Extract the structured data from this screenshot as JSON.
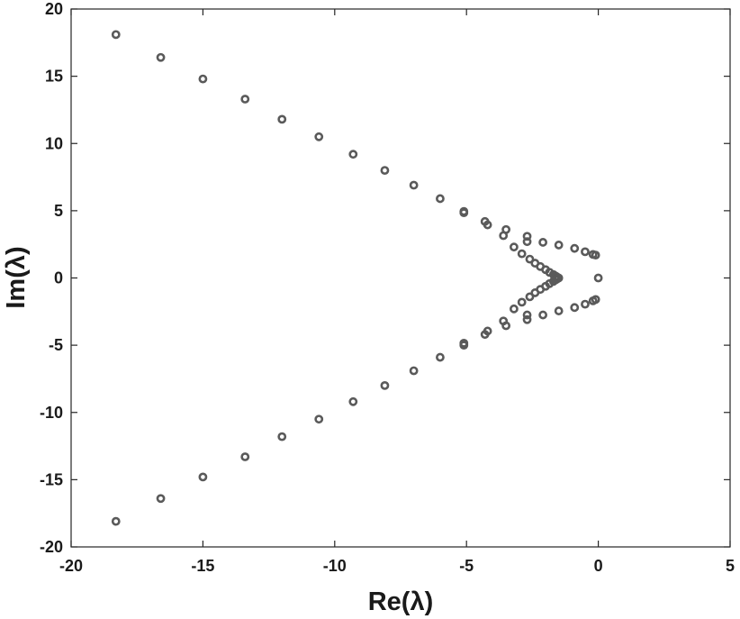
{
  "chart_data": {
    "type": "scatter",
    "title": "",
    "xlabel": "Re(λ)",
    "ylabel": "Im(λ)",
    "xlim": [
      -20,
      5
    ],
    "ylim": [
      -20,
      20
    ],
    "xticks": [
      -20,
      -15,
      -10,
      -5,
      0,
      5
    ],
    "yticks": [
      -20,
      -15,
      -10,
      -5,
      0,
      5,
      10,
      15,
      20
    ],
    "grid": false,
    "legend": "none",
    "marker": "circle",
    "marker_color": "#5a5a5a",
    "series": [
      {
        "x": [
          -18.3,
          -16.6,
          -15.0,
          -13.4,
          -12.0,
          -10.6,
          -9.3,
          -8.1,
          -7.0,
          -6.0,
          -5.1,
          -5.1,
          -4.3,
          -4.2,
          -3.5,
          -3.6,
          -2.7,
          -2.7,
          -2.1,
          -1.5,
          -0.9,
          -0.5,
          -0.2,
          -0.1,
          0.0,
          -0.1,
          -0.2,
          -0.5,
          -0.9,
          -1.5,
          -2.1,
          -2.7,
          -2.7,
          -3.6,
          -3.5,
          -4.2,
          -4.3,
          -5.1,
          -5.1,
          -6.0,
          -7.0,
          -8.1,
          -9.3,
          -10.6,
          -12.0,
          -13.4,
          -15.0,
          -16.6,
          -18.3,
          -3.2,
          -2.9,
          -2.6,
          -2.4,
          -2.2,
          -2.0,
          -1.85,
          -1.7,
          -1.6,
          -1.55,
          -1.5,
          -1.55,
          -1.6,
          -1.7,
          -1.85,
          -2.0,
          -2.2,
          -2.4,
          -2.6,
          -2.9,
          -3.2
        ],
        "y": [
          18.1,
          16.4,
          14.8,
          13.3,
          11.8,
          10.5,
          9.2,
          8.0,
          6.9,
          5.9,
          4.95,
          4.85,
          4.2,
          3.95,
          3.6,
          3.15,
          3.1,
          2.7,
          2.65,
          2.45,
          2.2,
          1.95,
          1.75,
          1.7,
          0.0,
          -1.6,
          -1.7,
          -1.95,
          -2.2,
          -2.45,
          -2.75,
          -2.75,
          -3.1,
          -3.2,
          -3.55,
          -3.95,
          -4.2,
          -4.85,
          -5.0,
          -5.9,
          -6.9,
          -8.0,
          -9.2,
          -10.5,
          -11.8,
          -13.3,
          -14.8,
          -16.4,
          -18.1,
          2.3,
          1.8,
          1.4,
          1.1,
          0.85,
          0.62,
          0.42,
          0.25,
          0.12,
          0.05,
          0.0,
          -0.05,
          -0.12,
          -0.25,
          -0.42,
          -0.62,
          -0.85,
          -1.1,
          -1.4,
          -1.8,
          -2.3
        ]
      }
    ]
  }
}
